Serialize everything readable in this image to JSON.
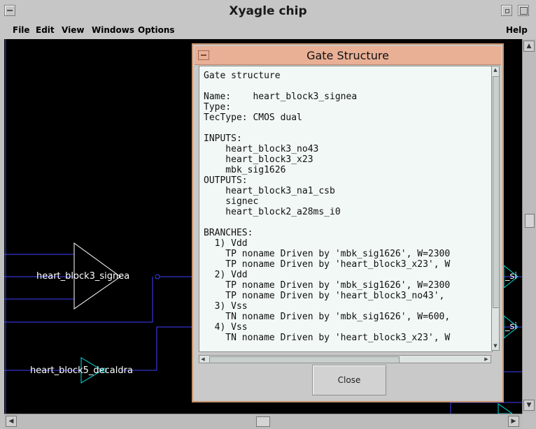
{
  "window": {
    "title": "Xyagle chip",
    "menu": [
      "File",
      "Edit",
      "View",
      "Windows",
      "Options"
    ],
    "help": "Help"
  },
  "canvas": {
    "labels": {
      "gate1": "heart_block3_signea",
      "gate2": "heart_block5_decaldra",
      "right1": "_si",
      "right2": "_si"
    },
    "colors": {
      "wire": "#4040ff",
      "gate": "#00e0e0",
      "gate_main": "#ffffff",
      "background": "#000000"
    }
  },
  "dialog": {
    "title": "Gate Structure",
    "close_label": "Close",
    "text": "Gate structure\n\nName:    heart_block3_signea\nType:\nTecType: CMOS dual\n\nINPUTS:\n    heart_block3_no43\n    heart_block3_x23\n    mbk_sig1626\nOUTPUTS:\n    heart_block3_na1_csb\n    signec\n    heart_block2_a28ms_i0\n\nBRANCHES:\n  1) Vdd\n    TP noname Driven by 'mbk_sig1626', W=2300\n    TP noname Driven by 'heart_block3_x23', W\n  2) Vdd\n    TP noname Driven by 'mbk_sig1626', W=2300\n    TP noname Driven by 'heart_block3_no43',\n  3) Vss\n    TN noname Driven by 'mbk_sig1626', W=600,\n  4) Vss\n    TN noname Driven by 'heart_block3_x23', W"
  }
}
